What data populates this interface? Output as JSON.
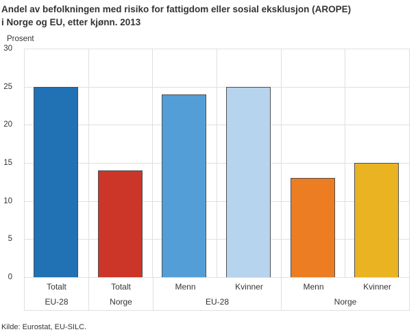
{
  "header": {
    "title_lines": [
      "Andel av befolkningen med risiko for fattigdom eller sosial eksklusjon (AROPE)",
      "i Norge og EU, etter kjønn. 2013"
    ]
  },
  "source": "Kilde: Eurostat, EU-SILC.",
  "chart_data": {
    "type": "bar",
    "title": "Andel av befolkningen med risiko for fattigdom eller sosial eksklusjon (AROPE) i Norge og EU, etter kjønn. 2013",
    "ylabel": "Prosent",
    "xlabel": "",
    "ylim": [
      0,
      30
    ],
    "yticks": [
      0,
      5,
      10,
      15,
      20,
      25,
      30
    ],
    "grid": true,
    "legend": "none",
    "categories": [
      "Totalt",
      "Totalt",
      "Menn",
      "Kvinner",
      "Menn",
      "Kvinner"
    ],
    "groups": [
      {
        "label": "EU-28",
        "span": 1
      },
      {
        "label": "Norge",
        "span": 1
      },
      {
        "label": "EU-28",
        "span": 2
      },
      {
        "label": "Norge",
        "span": 2
      }
    ],
    "values": [
      25,
      14,
      24,
      25,
      13,
      15
    ],
    "bar_colors": [
      "#2171b5",
      "#cc3628",
      "#549ed7",
      "#b7d4ee",
      "#ec7d23",
      "#e9b321"
    ],
    "bar_border_color": "#4d4d4d",
    "gridline_color": "#dfdfdf"
  }
}
